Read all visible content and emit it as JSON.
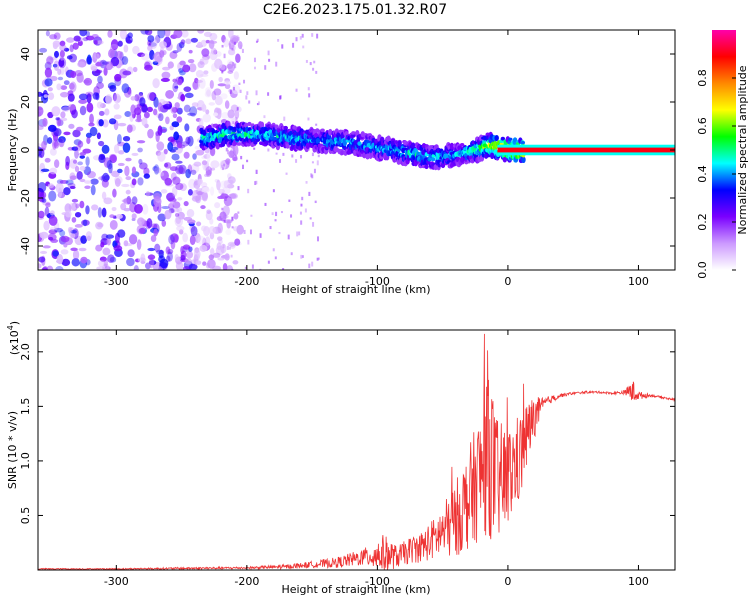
{
  "title": "C2E6.2023.175.01.32.R07",
  "chart_data": [
    {
      "type": "heatmap",
      "xlabel": "Height of straight line (km)",
      "ylabel": "Frequency (Hz)",
      "xlim": [
        -360,
        128
      ],
      "ylim": [
        -50,
        50
      ],
      "x_ticks": [
        -300,
        -200,
        -100,
        0,
        100
      ],
      "y_ticks": [
        -40,
        -20,
        0,
        20,
        40
      ],
      "colorbar": {
        "label": "Normalized spectral amplitude",
        "range": [
          0,
          1
        ],
        "ticks": [
          0.0,
          0.2,
          0.4,
          0.6,
          0.8
        ],
        "colors": [
          "#ffffff",
          "#cc99ff",
          "#7a00ff",
          "#0000ff",
          "#00ffff",
          "#00ff00",
          "#ffff00",
          "#ff8800",
          "#ff0000",
          "#ff00aa"
        ]
      },
      "signal_track": {
        "x": [
          -235,
          -210,
          -180,
          -150,
          -120,
          -100,
          -80,
          -60,
          -40,
          -25,
          -15,
          0,
          128
        ],
        "freq": [
          5,
          7,
          6,
          4,
          3,
          1,
          -1,
          -3,
          -2,
          0,
          2,
          0,
          0
        ],
        "amplitude": [
          0.45,
          0.5,
          0.45,
          0.4,
          0.4,
          0.4,
          0.45,
          0.45,
          0.4,
          0.5,
          0.6,
          0.8,
          0.9
        ]
      },
      "noise_region": {
        "x_from": -360,
        "x_to": -220,
        "level": 0.25
      }
    },
    {
      "type": "line",
      "xlabel": "Height of straight line (km)",
      "ylabel": "SNR (10 * v/v)",
      "y_multiplier_label": "(x10",
      "y_multiplier_exp": "4",
      "xlim": [
        -360,
        128
      ],
      "ylim": [
        0,
        2.2
      ],
      "x_ticks": [
        -300,
        -200,
        -100,
        0,
        100
      ],
      "y_ticks": [
        0.5,
        1.0,
        1.5,
        2.0
      ],
      "y_tick_labels": [
        "0.5",
        "1.0",
        "1.5",
        "2.0"
      ],
      "line_color": "#ee3333",
      "series": [
        {
          "x": [
            -360,
            -300,
            -250,
            -200,
            -170,
            -150,
            -130,
            -110,
            -95,
            -85,
            -75,
            -65,
            -55,
            -45,
            -35,
            -28,
            -20,
            -15,
            -10,
            -5,
            0,
            5,
            10,
            15,
            20,
            25,
            30,
            40,
            50,
            60,
            70,
            80,
            90,
            95,
            100,
            110,
            128
          ],
          "y": [
            0.01,
            0.01,
            0.015,
            0.02,
            0.03,
            0.05,
            0.07,
            0.12,
            0.15,
            0.12,
            0.18,
            0.22,
            0.3,
            0.4,
            0.55,
            0.7,
            0.9,
            1.2,
            0.85,
            0.8,
            0.85,
            0.95,
            1.05,
            1.25,
            1.4,
            1.48,
            1.55,
            1.6,
            1.62,
            1.63,
            1.63,
            1.62,
            1.63,
            1.64,
            1.6,
            1.6,
            1.56
          ],
          "spread": [
            0.005,
            0.005,
            0.01,
            0.01,
            0.02,
            0.03,
            0.05,
            0.08,
            0.18,
            0.1,
            0.12,
            0.15,
            0.2,
            0.3,
            0.4,
            0.5,
            0.6,
            0.9,
            0.6,
            0.55,
            0.45,
            0.45,
            0.4,
            0.3,
            0.2,
            0.1,
            0.04,
            0.02,
            0.01,
            0.01,
            0.01,
            0.01,
            0.02,
            0.12,
            0.04,
            0.01,
            0.01
          ]
        }
      ]
    }
  ]
}
